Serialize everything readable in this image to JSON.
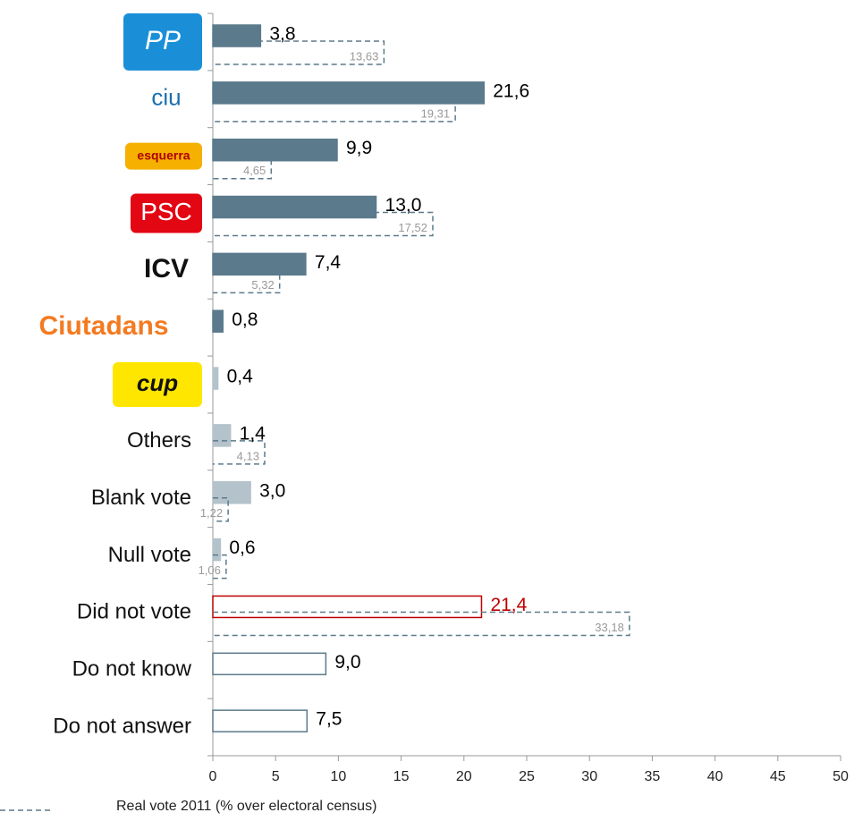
{
  "chart_data": {
    "type": "bar",
    "orientation": "horizontal",
    "categories": [
      "PP",
      "ciu",
      "esquerra",
      "PSC",
      "ICV",
      "Ciutadans",
      "cup",
      "Others",
      "Blank vote",
      "Null vote",
      "Did not vote",
      "Do not know",
      "Do not answer"
    ],
    "series": [
      {
        "values": [
          3.8,
          21.6,
          9.9,
          13.0,
          7.4,
          0.8,
          0.4,
          1.4,
          3.0,
          0.6,
          21.4,
          9.0,
          7.5
        ],
        "value_labels": [
          "3,8",
          "21,6",
          "9,9",
          "13,0",
          "7,4",
          "0,8",
          "0,4",
          "1,4",
          "3,0",
          "0,6",
          "21,4",
          "9,0",
          "7,5"
        ],
        "colors": [
          "#5b7a8c",
          "#5b7a8c",
          "#5b7a8c",
          "#5b7a8c",
          "#5b7a8c",
          "#5b7a8c",
          "#b4c2cb",
          "#b4c2cb",
          "#b4c2cb",
          "#b4c2cb",
          "#ffffff",
          "#ffffff",
          "#ffffff"
        ],
        "edgecolors": [
          "#5b7a8c",
          "#5b7a8c",
          "#5b7a8c",
          "#5b7a8c",
          "#5b7a8c",
          "#5b7a8c",
          "#b4c2cb",
          "#b4c2cb",
          "#b4c2cb",
          "#b4c2cb",
          "#c00000",
          "#5b7a8c",
          "#5b7a8c"
        ],
        "label_colors": [
          "#000000",
          "#000000",
          "#000000",
          "#000000",
          "#000000",
          "#000000",
          "#000000",
          "#000000",
          "#000000",
          "#000000",
          "#c00000",
          "#000000",
          "#000000"
        ]
      },
      {
        "name": "Real vote 2011 (% over electoral census)",
        "color": "#5b7a8c",
        "linestyle": "dashed",
        "values": [
          13.63,
          19.31,
          4.65,
          17.52,
          5.32,
          null,
          null,
          4.13,
          1.22,
          1.06,
          33.18,
          null,
          null
        ],
        "value_labels": [
          "13,63",
          "19,31",
          "4,65",
          "17,52",
          "5,32",
          null,
          null,
          "4,13",
          "1,22",
          "1,06",
          "33,18",
          null,
          null
        ]
      }
    ],
    "xlim": [
      0,
      50
    ],
    "xticks": [
      0,
      5,
      10,
      15,
      20,
      25,
      30,
      35,
      40,
      45,
      50
    ]
  }
}
